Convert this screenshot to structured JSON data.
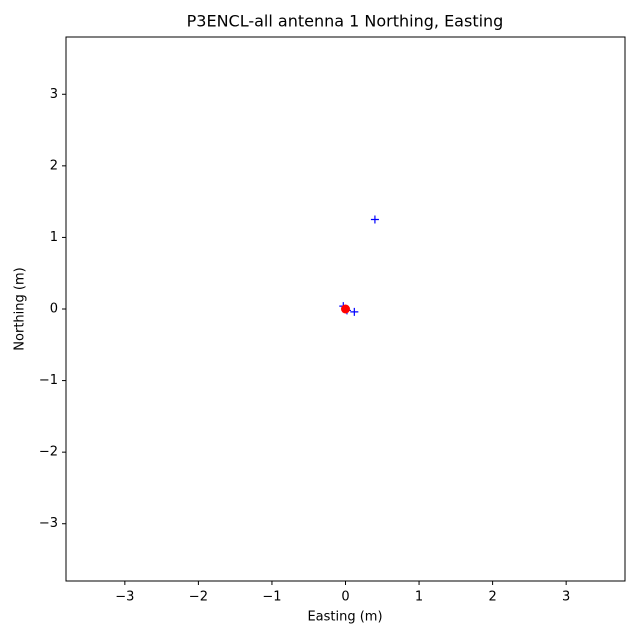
{
  "chart_data": {
    "type": "scatter",
    "title": "P3ENCL-all antenna 1 Northing, Easting",
    "x_label": "Easting (m)",
    "y_label": "Northing (m)",
    "xlim": [
      -3.8,
      3.8
    ],
    "ylim": [
      -3.8,
      3.8
    ],
    "xticks": [
      {
        "value": -3,
        "label": "−3"
      },
      {
        "value": -2,
        "label": "−2"
      },
      {
        "value": -1,
        "label": "−1"
      },
      0,
      1,
      2,
      3
    ],
    "yticks": [
      {
        "value": -3,
        "label": "−3"
      },
      {
        "value": -2,
        "label": "−2"
      },
      {
        "value": -1,
        "label": "−1"
      },
      0,
      1,
      2,
      3
    ],
    "series": [
      {
        "color": "#0000ff",
        "marker": "plus",
        "x": [
          0.4,
          0.12,
          -0.03,
          0.02,
          0.0
        ],
        "y": [
          1.25,
          -0.04,
          0.04,
          -0.02,
          0.0
        ]
      },
      {
        "color": "#ff0000",
        "marker": "circle",
        "x": [
          0.0
        ],
        "y": [
          0.0
        ]
      }
    ]
  }
}
